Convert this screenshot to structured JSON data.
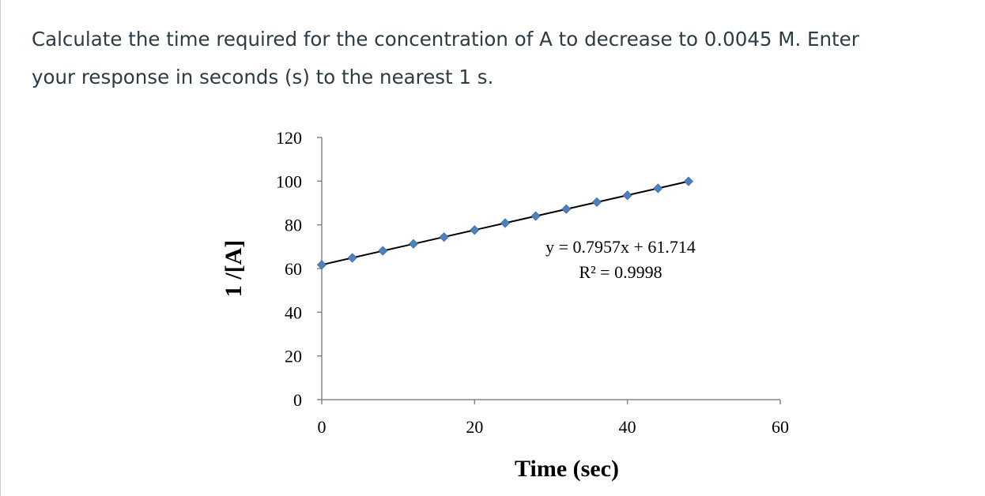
{
  "question": {
    "line1": "Calculate the time required for the concentration of A to decrease to 0.0045 M. Enter",
    "line2": "your response in seconds (s) to the nearest 1 s."
  },
  "chart_data": {
    "type": "scatter",
    "xlabel": "Time (sec)",
    "ylabel": "1 /[A]",
    "xlim": [
      0,
      60
    ],
    "ylim": [
      0,
      120
    ],
    "x_ticks": [
      "0",
      "20",
      "40",
      "60"
    ],
    "y_ticks": [
      "0",
      "20",
      "40",
      "60",
      "80",
      "100",
      "120"
    ],
    "grid": false,
    "series": [
      {
        "x": [
          0,
          4,
          8,
          12,
          16,
          20,
          24,
          28,
          32,
          36,
          40,
          44,
          48
        ],
        "y": [
          61.7,
          64.9,
          68.1,
          71.3,
          74.4,
          77.6,
          80.8,
          84.0,
          87.2,
          90.4,
          93.5,
          96.7,
          99.9
        ],
        "color": "#4f81bd",
        "marker": "diamond"
      }
    ],
    "trendline": {
      "slope": 0.7957,
      "intercept": 61.714,
      "x_range": [
        0,
        48
      ],
      "color": "#000000",
      "equation_label": "y = 0.7957x + 61.714",
      "r2_label": "R² = 0.9998"
    }
  }
}
